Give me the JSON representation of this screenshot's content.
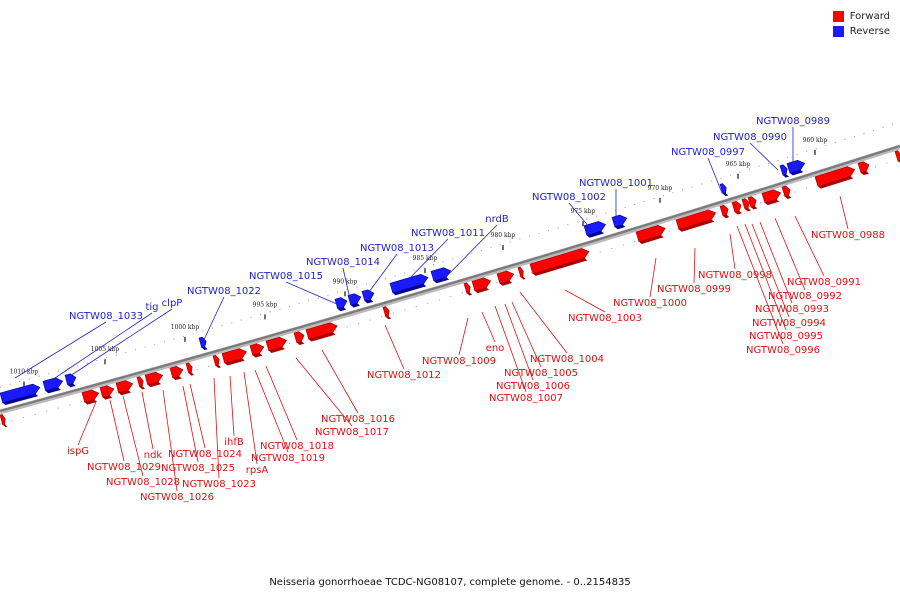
{
  "colors": {
    "forward": "#ff0000",
    "reverse": "#1a1aff",
    "forward_label": "#dd1111",
    "reverse_label": "#2222cc",
    "backbone": "#7a7a7a"
  },
  "legend": [
    {
      "label": "Forward",
      "color": "#ff0000"
    },
    {
      "label": "Reverse",
      "color": "#1a1aff"
    }
  ],
  "caption": "Neisseria gonorrhoeae TCDC-NG08107, complete genome. - 0..2154835",
  "ticks": [
    "960 kbp",
    "965 kbp",
    "970 kbp",
    "975 kbp",
    "980 kbp",
    "985 kbp",
    "990 kbp",
    "995 kbp",
    "1000 kbp",
    "1005 kbp",
    "1010 kbp"
  ],
  "labels_reverse": [
    "NGTW08_0989",
    "NGTW08_0990",
    "NGTW08_0997",
    "NGTW08_1001",
    "NGTW08_1002",
    "nrdB",
    "NGTW08_1011",
    "NGTW08_1013",
    "NGTW08_1014",
    "NGTW08_1015",
    "NGTW08_1022",
    "clpP",
    "tig",
    "NGTW08_1033"
  ],
  "labels_forward": [
    "NGTW08_0988",
    "NGTW08_0991",
    "NGTW08_0992",
    "NGTW08_0993",
    "NGTW08_0994",
    "NGTW08_0995",
    "NGTW08_0996",
    "NGTW08_0998",
    "NGTW08_0999",
    "NGTW08_1000",
    "NGTW08_1003",
    "NGTW08_1004",
    "NGTW08_1005",
    "NGTW08_1006",
    "NGTW08_1007",
    "eno",
    "NGTW08_1009",
    "NGTW08_1012",
    "NGTW08_1016",
    "NGTW08_1017",
    "NGTW08_1018",
    "NGTW08_1019",
    "rpsA",
    "ihfB",
    "NGTW08_1023",
    "NGTW08_1024",
    "NGTW08_1025",
    "NGTW08_1026",
    "ndk",
    "NGTW08_1028",
    "NGTW08_1029",
    "ispG"
  ]
}
